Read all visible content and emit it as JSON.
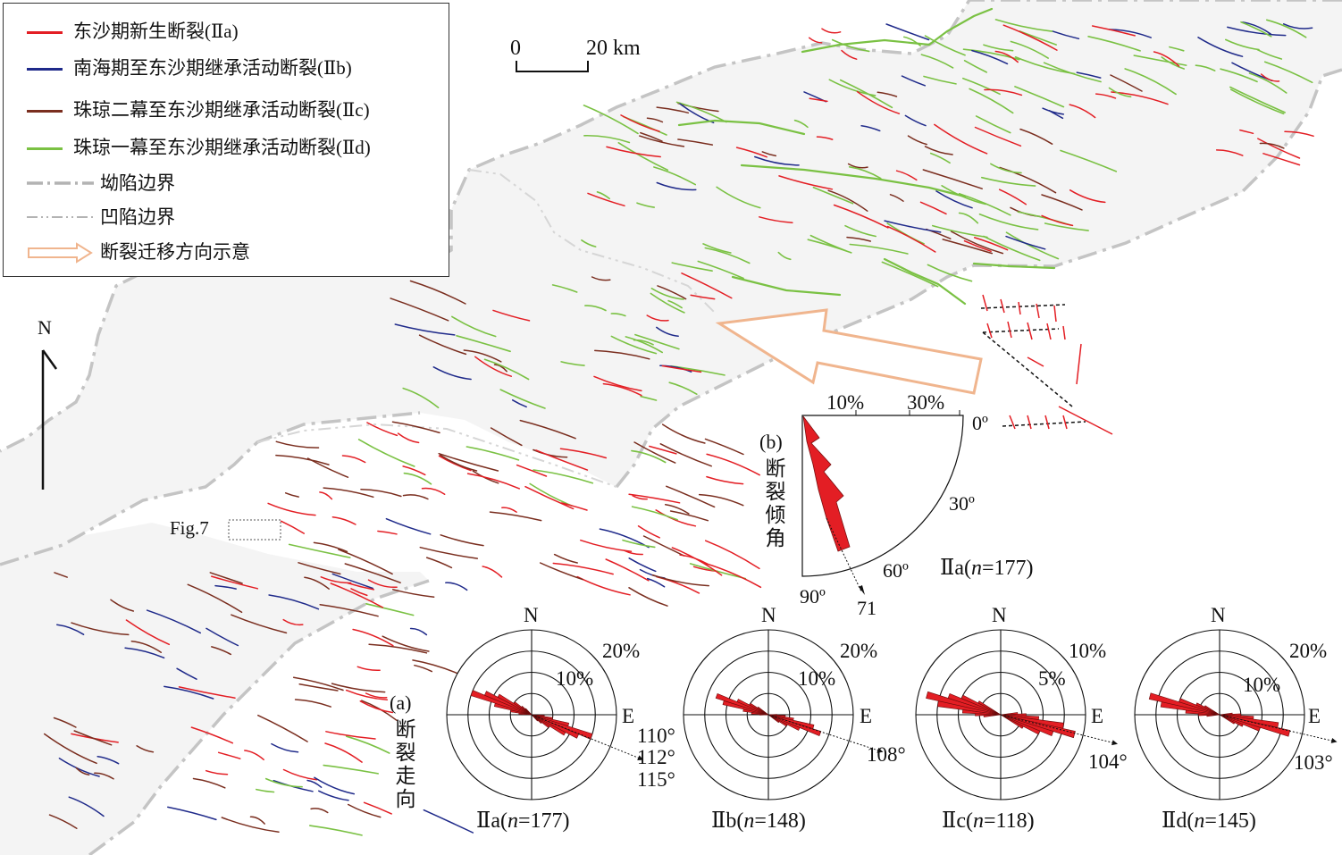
{
  "legend": {
    "items": [
      {
        "key": "IIa",
        "label": "东沙期新生断裂(Ⅱa)",
        "color": "#e31e24",
        "style": "solid"
      },
      {
        "key": "IIb",
        "label": "南海期至东沙期继承活动断裂(Ⅱb)",
        "color": "#1f2a8a",
        "style": "solid"
      },
      {
        "key": "IIc",
        "label": "珠琼二幕至东沙期继承活动断裂(Ⅱc)",
        "color": "#7a2e1f",
        "style": "solid"
      },
      {
        "key": "IId",
        "label": "珠琼一幕至东沙期继承活动断裂(Ⅱd)",
        "color": "#7ac143",
        "style": "solid"
      },
      {
        "key": "depression",
        "label": "坳陷边界",
        "color": "#b3b3b3",
        "style": "dash-dot"
      },
      {
        "key": "sag",
        "label": "凹陷边界",
        "color": "#b3b3b3",
        "style": "dash-dot-dot"
      },
      {
        "key": "arrow",
        "label": "断裂迁移方向示意",
        "color": "#f2c7a8",
        "style": "arrow"
      }
    ]
  },
  "scale_bar": {
    "start": "0",
    "end": "20 km"
  },
  "north_arrow": {
    "label": "N"
  },
  "fig_ref": {
    "label": "Fig.7"
  },
  "map_colors": {
    "area_fill": "#f4f4f4",
    "depression": "#c4c4c4",
    "sag": "#d6d6d6",
    "arrow": "#f0b58e"
  },
  "dip_panel": {
    "label": "(b)",
    "vertical_label": "断裂倾角",
    "pct_10": "10%",
    "pct_30": "30%",
    "angle_0": "0º",
    "angle_30": "30º",
    "angle_60": "60º",
    "angle_90": "90º",
    "mean_value": "71",
    "caption_prefix": "Ⅱa(",
    "caption_n": "n",
    "caption_suffix": "=177)"
  },
  "strike_panel": {
    "label": "(a)",
    "vertical_label": "断裂走向",
    "roses": [
      {
        "key": "IIa",
        "north": "N",
        "east": "E",
        "ring_outer": "20%",
        "ring_inner": "10%",
        "pct_scale": 20,
        "dirs": [
          "110°",
          "112°",
          "115°"
        ],
        "caption_prefix": "Ⅱa(",
        "caption_n": "n",
        "caption_suffix": "=177)"
      },
      {
        "key": "IIb",
        "north": "N",
        "east": "E",
        "ring_outer": "20%",
        "ring_inner": "10%",
        "pct_scale": 20,
        "dirs": [
          "108°"
        ],
        "caption_prefix": "Ⅱb(",
        "caption_n": "n",
        "caption_suffix": "=148)"
      },
      {
        "key": "IIc",
        "north": "N",
        "east": "E",
        "ring_outer": "10%",
        "ring_inner": "5%",
        "pct_scale": 10,
        "dirs": [
          "104°"
        ],
        "caption_prefix": "Ⅱc(",
        "caption_n": "n",
        "caption_suffix": "=118)"
      },
      {
        "key": "IId",
        "north": "N",
        "east": "E",
        "ring_outer": "20%",
        "ring_inner": "10%",
        "pct_scale": 20,
        "dirs": [
          "103°"
        ],
        "caption_prefix": "Ⅱd(",
        "caption_n": "n",
        "caption_suffix": "=145)"
      }
    ]
  }
}
